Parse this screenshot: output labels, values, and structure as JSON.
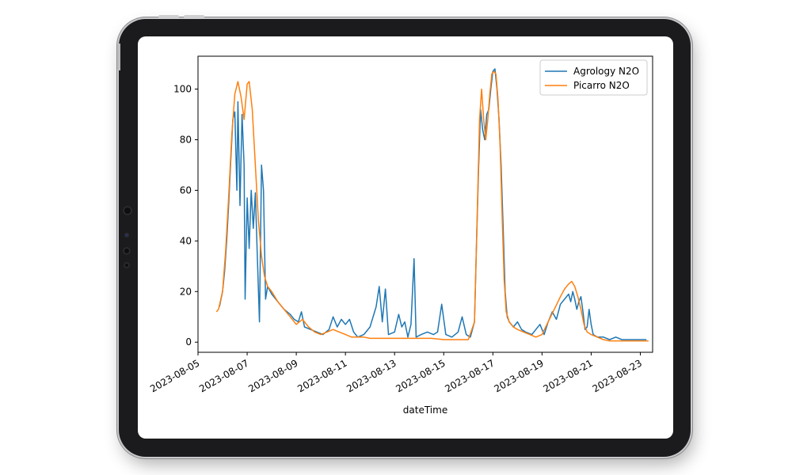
{
  "chart_data": {
    "type": "line",
    "xlabel": "dateTime",
    "ylabel": "",
    "x_ticks": [
      "2023-08-05",
      "2023-08-07",
      "2023-08-09",
      "2023-08-11",
      "2023-08-13",
      "2023-08-15",
      "2023-08-17",
      "2023-08-19",
      "2023-08-21",
      "2023-08-23"
    ],
    "y_ticks": [
      0,
      20,
      40,
      60,
      80,
      100
    ],
    "xlim": [
      "2023-08-05T00:00",
      "2023-08-23T12:00"
    ],
    "ylim": [
      -4,
      113
    ],
    "grid": false,
    "legend_position": "top-right",
    "series": [
      {
        "name": "Agrology N2O",
        "color": "#1f77b4",
        "points": [
          [
            "2023-08-05T21:00",
            14
          ],
          [
            "2023-08-06T00:00",
            20
          ],
          [
            "2023-08-06T02:00",
            28
          ],
          [
            "2023-08-06T04:00",
            40
          ],
          [
            "2023-08-06T06:00",
            55
          ],
          [
            "2023-08-06T08:00",
            72
          ],
          [
            "2023-08-06T10:00",
            88
          ],
          [
            "2023-08-06T12:00",
            91
          ],
          [
            "2023-08-06T14:00",
            60
          ],
          [
            "2023-08-06T15:00",
            95
          ],
          [
            "2023-08-06T17:00",
            54
          ],
          [
            "2023-08-06T19:00",
            90
          ],
          [
            "2023-08-06T21:00",
            70
          ],
          [
            "2023-08-06T22:00",
            17
          ],
          [
            "2023-08-07T00:00",
            57
          ],
          [
            "2023-08-07T02:00",
            37
          ],
          [
            "2023-08-07T04:00",
            60
          ],
          [
            "2023-08-07T06:00",
            45
          ],
          [
            "2023-08-07T08:00",
            59
          ],
          [
            "2023-08-07T10:00",
            33
          ],
          [
            "2023-08-07T12:00",
            8
          ],
          [
            "2023-08-07T14:00",
            70
          ],
          [
            "2023-08-07T16:00",
            60
          ],
          [
            "2023-08-07T18:00",
            17
          ],
          [
            "2023-08-07T20:00",
            22
          ],
          [
            "2023-08-08T00:00",
            19
          ],
          [
            "2023-08-08T06:00",
            16
          ],
          [
            "2023-08-08T12:00",
            13
          ],
          [
            "2023-08-08T18:00",
            11
          ],
          [
            "2023-08-08T22:00",
            9
          ],
          [
            "2023-08-09T02:00",
            8
          ],
          [
            "2023-08-09T05:00",
            12
          ],
          [
            "2023-08-09T08:00",
            6
          ],
          [
            "2023-08-09T14:00",
            5
          ],
          [
            "2023-08-09T20:00",
            4
          ],
          [
            "2023-08-10T02:00",
            3
          ],
          [
            "2023-08-10T08:00",
            5
          ],
          [
            "2023-08-10T12:00",
            10
          ],
          [
            "2023-08-10T16:00",
            6
          ],
          [
            "2023-08-10T20:00",
            9
          ],
          [
            "2023-08-11T00:00",
            7
          ],
          [
            "2023-08-11T04:00",
            9
          ],
          [
            "2023-08-11T08:00",
            4
          ],
          [
            "2023-08-11T12:00",
            2
          ],
          [
            "2023-08-11T18:00",
            3
          ],
          [
            "2023-08-12T00:00",
            6
          ],
          [
            "2023-08-12T06:00",
            14
          ],
          [
            "2023-08-12T09:00",
            22
          ],
          [
            "2023-08-12T12:00",
            8
          ],
          [
            "2023-08-12T15:00",
            21
          ],
          [
            "2023-08-12T18:00",
            3
          ],
          [
            "2023-08-13T00:00",
            4
          ],
          [
            "2023-08-13T04:00",
            11
          ],
          [
            "2023-08-13T07:00",
            6
          ],
          [
            "2023-08-13T10:00",
            8
          ],
          [
            "2023-08-13T13:00",
            2
          ],
          [
            "2023-08-13T16:00",
            7
          ],
          [
            "2023-08-13T19:00",
            33
          ],
          [
            "2023-08-13T21:00",
            2
          ],
          [
            "2023-08-14T02:00",
            3
          ],
          [
            "2023-08-14T08:00",
            4
          ],
          [
            "2023-08-14T14:00",
            3
          ],
          [
            "2023-08-14T18:00",
            4
          ],
          [
            "2023-08-14T22:00",
            15
          ],
          [
            "2023-08-15T02:00",
            3
          ],
          [
            "2023-08-15T08:00",
            2
          ],
          [
            "2023-08-15T14:00",
            4
          ],
          [
            "2023-08-15T18:00",
            10
          ],
          [
            "2023-08-15T22:00",
            3
          ],
          [
            "2023-08-16T02:00",
            2
          ],
          [
            "2023-08-16T06:00",
            8
          ],
          [
            "2023-08-16T08:00",
            38
          ],
          [
            "2023-08-16T10:00",
            68
          ],
          [
            "2023-08-16T12:00",
            92
          ],
          [
            "2023-08-16T14:00",
            84
          ],
          [
            "2023-08-16T16:00",
            80
          ],
          [
            "2023-08-16T18:00",
            90
          ],
          [
            "2023-08-16T20:00",
            92
          ],
          [
            "2023-08-16T22:00",
            100
          ],
          [
            "2023-08-17T00:00",
            107
          ],
          [
            "2023-08-17T02:00",
            108
          ],
          [
            "2023-08-17T04:00",
            100
          ],
          [
            "2023-08-17T06:00",
            88
          ],
          [
            "2023-08-17T08:00",
            70
          ],
          [
            "2023-08-17T10:00",
            45
          ],
          [
            "2023-08-17T12:00",
            20
          ],
          [
            "2023-08-17T14:00",
            10
          ],
          [
            "2023-08-17T16:00",
            8
          ],
          [
            "2023-08-17T20:00",
            6
          ],
          [
            "2023-08-18T00:00",
            8
          ],
          [
            "2023-08-18T04:00",
            5
          ],
          [
            "2023-08-18T08:00",
            4
          ],
          [
            "2023-08-18T14:00",
            3
          ],
          [
            "2023-08-18T18:00",
            5
          ],
          [
            "2023-08-18T22:00",
            7
          ],
          [
            "2023-08-19T02:00",
            3
          ],
          [
            "2023-08-19T06:00",
            8
          ],
          [
            "2023-08-19T10:00",
            12
          ],
          [
            "2023-08-19T14:00",
            9
          ],
          [
            "2023-08-19T18:00",
            15
          ],
          [
            "2023-08-19T22:00",
            17
          ],
          [
            "2023-08-20T02:00",
            19
          ],
          [
            "2023-08-20T04:00",
            16
          ],
          [
            "2023-08-20T06:00",
            20
          ],
          [
            "2023-08-20T08:00",
            17
          ],
          [
            "2023-08-20T10:00",
            13
          ],
          [
            "2023-08-20T12:00",
            16
          ],
          [
            "2023-08-20T14:00",
            18
          ],
          [
            "2023-08-20T16:00",
            12
          ],
          [
            "2023-08-20T18:00",
            5
          ],
          [
            "2023-08-20T20:00",
            6
          ],
          [
            "2023-08-20T22:00",
            13
          ],
          [
            "2023-08-21T00:00",
            7
          ],
          [
            "2023-08-21T02:00",
            3
          ],
          [
            "2023-08-21T06:00",
            2
          ],
          [
            "2023-08-21T12:00",
            2
          ],
          [
            "2023-08-21T18:00",
            1
          ],
          [
            "2023-08-22T00:00",
            2
          ],
          [
            "2023-08-22T06:00",
            1
          ],
          [
            "2023-08-22T12:00",
            1
          ],
          [
            "2023-08-22T18:00",
            1
          ],
          [
            "2023-08-23T00:00",
            1
          ],
          [
            "2023-08-23T06:00",
            1
          ]
        ]
      },
      {
        "name": "Picarro N2O",
        "color": "#ff7f0e",
        "points": [
          [
            "2023-08-05T18:00",
            12
          ],
          [
            "2023-08-05T20:00",
            13
          ],
          [
            "2023-08-06T00:00",
            20
          ],
          [
            "2023-08-06T03:00",
            36
          ],
          [
            "2023-08-06T06:00",
            58
          ],
          [
            "2023-08-06T09:00",
            82
          ],
          [
            "2023-08-06T12:00",
            98
          ],
          [
            "2023-08-06T15:00",
            103
          ],
          [
            "2023-08-06T18:00",
            97
          ],
          [
            "2023-08-06T21:00",
            88
          ],
          [
            "2023-08-07T00:00",
            102
          ],
          [
            "2023-08-07T02:00",
            103
          ],
          [
            "2023-08-07T05:00",
            92
          ],
          [
            "2023-08-07T08:00",
            70
          ],
          [
            "2023-08-07T11:00",
            48
          ],
          [
            "2023-08-07T14:00",
            34
          ],
          [
            "2023-08-07T17:00",
            26
          ],
          [
            "2023-08-07T20:00",
            22
          ],
          [
            "2023-08-08T00:00",
            20
          ],
          [
            "2023-08-08T06:00",
            16
          ],
          [
            "2023-08-08T12:00",
            13
          ],
          [
            "2023-08-08T18:00",
            10
          ],
          [
            "2023-08-09T00:00",
            7
          ],
          [
            "2023-08-09T06:00",
            9
          ],
          [
            "2023-08-09T12:00",
            6
          ],
          [
            "2023-08-09T18:00",
            4
          ],
          [
            "2023-08-10T00:00",
            3
          ],
          [
            "2023-08-10T06:00",
            4
          ],
          [
            "2023-08-10T12:00",
            5
          ],
          [
            "2023-08-10T18:00",
            4
          ],
          [
            "2023-08-11T00:00",
            3
          ],
          [
            "2023-08-11T06:00",
            2
          ],
          [
            "2023-08-11T12:00",
            2
          ],
          [
            "2023-08-11T18:00",
            2
          ],
          [
            "2023-08-12T00:00",
            1.5
          ],
          [
            "2023-08-12T12:00",
            1.5
          ],
          [
            "2023-08-13T00:00",
            1.5
          ],
          [
            "2023-08-13T12:00",
            1.5
          ],
          [
            "2023-08-14T00:00",
            1.5
          ],
          [
            "2023-08-14T12:00",
            1.5
          ],
          [
            "2023-08-15T00:00",
            1
          ],
          [
            "2023-08-15T12:00",
            1
          ],
          [
            "2023-08-16T00:00",
            1
          ],
          [
            "2023-08-16T06:00",
            8
          ],
          [
            "2023-08-16T09:00",
            55
          ],
          [
            "2023-08-16T11:00",
            88
          ],
          [
            "2023-08-16T13:00",
            100
          ],
          [
            "2023-08-16T15:00",
            88
          ],
          [
            "2023-08-16T17:00",
            80
          ],
          [
            "2023-08-16T19:00",
            88
          ],
          [
            "2023-08-16T21:00",
            98
          ],
          [
            "2023-08-16T23:00",
            106
          ],
          [
            "2023-08-17T01:00",
            107
          ],
          [
            "2023-08-17T03:00",
            106
          ],
          [
            "2023-08-17T05:00",
            96
          ],
          [
            "2023-08-17T07:00",
            78
          ],
          [
            "2023-08-17T09:00",
            50
          ],
          [
            "2023-08-17T11:00",
            25
          ],
          [
            "2023-08-17T13:00",
            12
          ],
          [
            "2023-08-17T16:00",
            8
          ],
          [
            "2023-08-17T20:00",
            6
          ],
          [
            "2023-08-18T00:00",
            5
          ],
          [
            "2023-08-18T06:00",
            4
          ],
          [
            "2023-08-18T12:00",
            3
          ],
          [
            "2023-08-18T18:00",
            2
          ],
          [
            "2023-08-19T00:00",
            3
          ],
          [
            "2023-08-19T06:00",
            8
          ],
          [
            "2023-08-19T12:00",
            13
          ],
          [
            "2023-08-19T18:00",
            18
          ],
          [
            "2023-08-19T22:00",
            21
          ],
          [
            "2023-08-20T02:00",
            23
          ],
          [
            "2023-08-20T05:00",
            24
          ],
          [
            "2023-08-20T08:00",
            22
          ],
          [
            "2023-08-20T11:00",
            18
          ],
          [
            "2023-08-20T14:00",
            13
          ],
          [
            "2023-08-20T17:00",
            7
          ],
          [
            "2023-08-20T20:00",
            4
          ],
          [
            "2023-08-21T00:00",
            3
          ],
          [
            "2023-08-21T06:00",
            2
          ],
          [
            "2023-08-21T12:00",
            1
          ],
          [
            "2023-08-21T18:00",
            0.5
          ],
          [
            "2023-08-22T00:00",
            0.5
          ],
          [
            "2023-08-22T12:00",
            0.5
          ],
          [
            "2023-08-23T00:00",
            0.5
          ],
          [
            "2023-08-23T08:00",
            0.5
          ]
        ]
      }
    ]
  }
}
